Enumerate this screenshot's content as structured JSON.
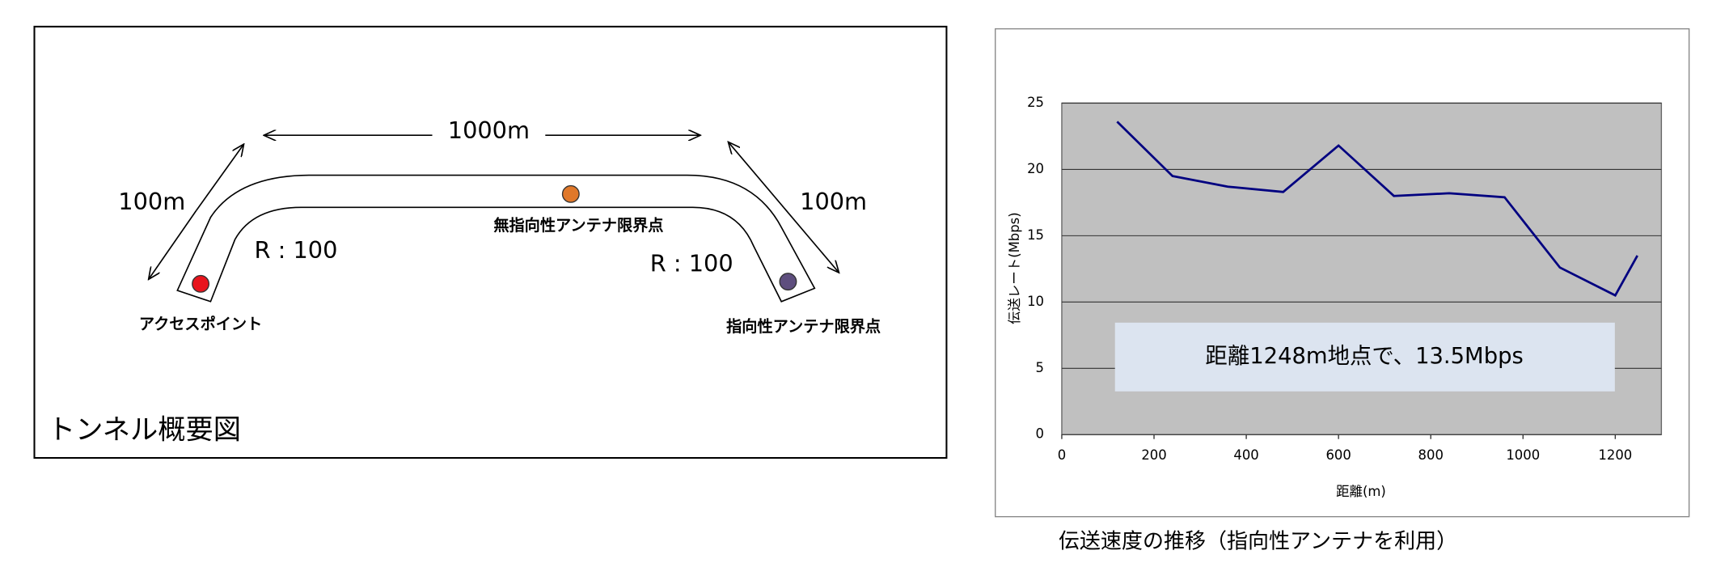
{
  "diagram": {
    "title": "トンネル概要図",
    "span_label": "1000m",
    "left_slope_label": "100m",
    "right_slope_label": "100m",
    "left_radius_label": "R : 100",
    "right_radius_label": "R : 100",
    "access_point": "アクセスポイント",
    "omni_limit": "無指向性アンテナ限界点",
    "directional_limit": "指向性アンテナ限界点"
  },
  "chart_data": {
    "type": "line",
    "title": "伝送速度の推移（指向性アンテナを利用）",
    "x_label": "距離(m)",
    "y_label": "伝送レート(Mbps)",
    "annotation": "距離1248m地点で、13.5Mbps",
    "x": [
      120,
      240,
      360,
      480,
      600,
      720,
      840,
      960,
      1080,
      1200,
      1248
    ],
    "values": [
      23.6,
      19.5,
      18.7,
      18.3,
      21.8,
      18.0,
      18.2,
      17.9,
      12.6,
      10.5,
      13.5
    ],
    "color": "#000080",
    "background": "#c0c0c0",
    "grid": true,
    "xlim": [
      0,
      1300
    ],
    "xticks": [
      0,
      200,
      400,
      600,
      800,
      1000,
      1200
    ],
    "ylim": [
      0,
      25
    ],
    "yticks": [
      0,
      5,
      10,
      15,
      20,
      25
    ]
  }
}
